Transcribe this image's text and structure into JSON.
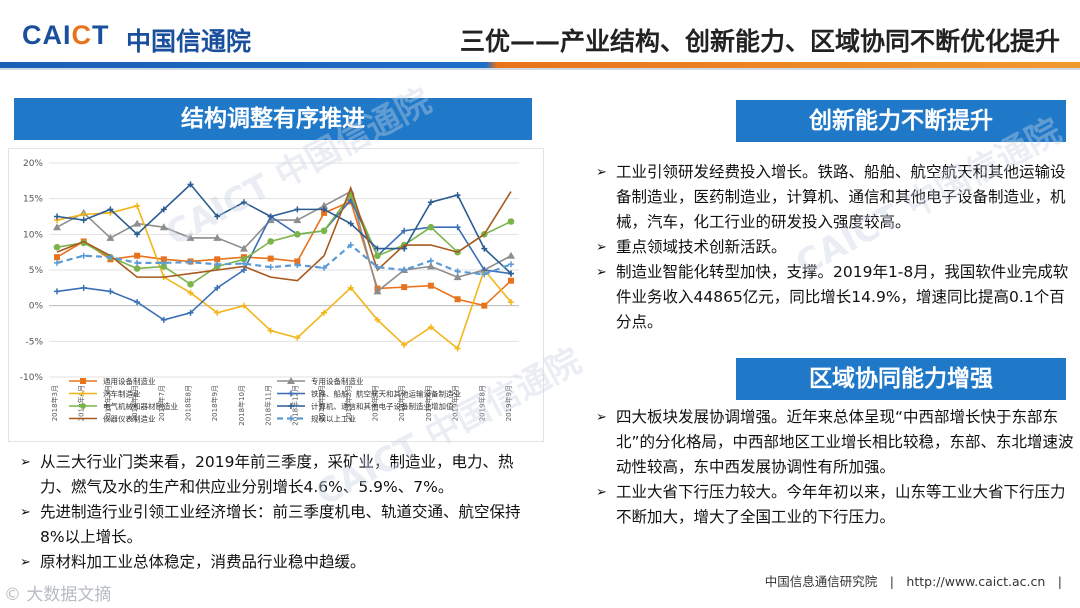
{
  "header": {
    "logo_text": "CAICT",
    "logo_cn": "中国信通院",
    "title": "三优——产业结构、创新能力、区域协同不断优化提升"
  },
  "left": {
    "section_title": "结构调整有序推进",
    "bullets": [
      "从三大行业门类来看，2019年前三季度，采矿业，制造业，电力、热力、燃气及水的生产和供应业分别增长4.6%、5.9%、7%。",
      "先进制造行业引领工业经济增长：前三季度机电、轨道交通、航空保持8%以上增长。",
      "原材料加工业总体稳定，消费品行业稳中趋缓。"
    ]
  },
  "innovation": {
    "section_title": "创新能力不断提升",
    "bullets": [
      "工业引领研发经费投入增长。铁路、船舶、航空航天和其他运输设备制造业，医药制造业，计算机、通信和其他电子设备制造业，机械，汽车，化工行业的研发投入强度较高。",
      "重点领域技术创新活跃。",
      "制造业智能化转型加快，支撑。2019年1-8月，我国软件业完成软件业务收入44865亿元，同比增长14.9%，增速同比提高0.1个百分点。"
    ]
  },
  "region": {
    "section_title": "区域协同能力增强",
    "bullets": [
      "四大板块发展协调增强。近年来总体呈现“中西部增长快于东部东北”的分化格局，中西部地区工业增长相比较稳，东部、东北增速波动性较高，东中西发展协调性有所加强。",
      "工业大省下行压力较大。今年年初以来，山东等工业大省下行压力不断加大，增大了全国工业的下行压力。"
    ]
  },
  "footer": {
    "text": "中国信息通信研究院　|　http://www.caict.ac.cn　|",
    "watermark": "© 大数据文摘"
  },
  "watermarks": [
    "CAICT 中国信通院",
    "CAICT 中国信通院",
    "CAICT 中国信通院"
  ],
  "chart_data": {
    "type": "line",
    "title": "",
    "ylim": [
      -10,
      20
    ],
    "yticks": [
      "20%",
      "15%",
      "10%",
      "5%",
      "0%",
      "-5%",
      "-10%"
    ],
    "categories": [
      "2018年3月",
      "2018年4月",
      "2018年5月",
      "2018年6月",
      "2018年7月",
      "2018年8月",
      "2018年9月",
      "2018年10月",
      "2018年11月",
      "2018年12月",
      "2019年2月",
      "2019年3月",
      "2019年4月",
      "2019年5月",
      "2019年6月",
      "2019年7月",
      "2019年8月",
      "2019年9月"
    ],
    "series": [
      {
        "name": "通用设备制造业",
        "color": "#e8731c",
        "marker": "square",
        "dash": false,
        "values": [
          6.8,
          9.0,
          6.5,
          7.0,
          6.5,
          6.2,
          6.5,
          6.8,
          6.6,
          6.2,
          13.0,
          14.6,
          2.4,
          2.6,
          2.8,
          0.9,
          0.0,
          3.5
        ]
      },
      {
        "name": "专用设备制造业",
        "color": "#8e8e8e",
        "marker": "triangle",
        "dash": false,
        "values": [
          11.0,
          13.0,
          9.5,
          11.5,
          11.0,
          9.5,
          9.5,
          8.0,
          12.0,
          12.0,
          14.0,
          16.0,
          2.0,
          5.0,
          5.5,
          4.0,
          5.0,
          7.0
        ]
      },
      {
        "name": "汽车制造业",
        "color": "#f2b51a",
        "marker": "cross",
        "dash": false,
        "values": [
          12.0,
          12.8,
          13.0,
          14.0,
          4.0,
          1.8,
          -1.0,
          0.0,
          -3.5,
          -4.5,
          -1.0,
          2.5,
          -2.0,
          -5.5,
          -3.0,
          -6.0,
          5.0,
          0.5
        ]
      },
      {
        "name": "铁路、船舶、航空航天和其他运输设备制造业",
        "color": "#3a6fb5",
        "marker": "cross",
        "dash": false,
        "values": [
          2.0,
          2.5,
          2.0,
          0.5,
          -2.0,
          -1.0,
          2.5,
          5.0,
          12.5,
          10.0,
          10.5,
          14.8,
          7.0,
          10.5,
          11.0,
          11.0,
          5.0,
          4.5
        ]
      },
      {
        "name": "电气机械和器材制造业",
        "color": "#7bb44a",
        "marker": "circle",
        "dash": false,
        "values": [
          8.2,
          8.8,
          6.8,
          5.2,
          5.5,
          3.0,
          5.5,
          6.5,
          9.0,
          10.0,
          10.5,
          15.5,
          7.0,
          8.5,
          11.0,
          7.5,
          10.0,
          11.8
        ]
      },
      {
        "name": "计算机、通信和其他电子设备制造业增加值",
        "color": "#2b5d92",
        "marker": "cross",
        "dash": false,
        "values": [
          12.5,
          12.0,
          13.5,
          10.0,
          13.5,
          17.0,
          12.5,
          14.5,
          12.5,
          13.5,
          13.5,
          11.5,
          8.0,
          8.0,
          14.5,
          15.5,
          8.0,
          4.5
        ]
      },
      {
        "name": "仪器仪表制造业",
        "color": "#a85a1e",
        "marker": "none",
        "dash": false,
        "values": [
          7.5,
          9.0,
          7.0,
          4.0,
          4.0,
          4.5,
          5.0,
          5.5,
          4.0,
          3.5,
          7.0,
          16.5,
          5.0,
          8.5,
          8.5,
          7.5,
          10.0,
          16.0
        ]
      },
      {
        "name": "规模以上工业",
        "color": "#5b9bd5",
        "marker": "cross",
        "dash": true,
        "values": [
          6.0,
          7.0,
          6.8,
          6.0,
          6.0,
          6.1,
          5.8,
          5.9,
          5.4,
          5.7,
          5.3,
          8.5,
          5.4,
          5.0,
          6.3,
          4.8,
          4.4,
          5.8
        ]
      }
    ]
  }
}
